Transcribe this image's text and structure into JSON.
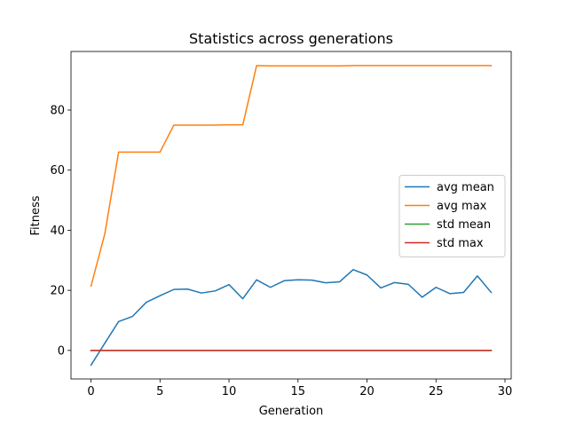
{
  "chart_data": {
    "type": "line",
    "title": "Statistics across generations",
    "xlabel": "Generation",
    "ylabel": "Fitness",
    "xlim": [
      -1.45,
      30.45
    ],
    "ylim": [
      -9.5,
      99.5
    ],
    "xticks": [
      0,
      5,
      10,
      15,
      20,
      25,
      30
    ],
    "yticks": [
      0,
      20,
      40,
      60,
      80
    ],
    "grid": false,
    "legend_position": "center-right",
    "x": [
      0,
      1,
      2,
      3,
      4,
      5,
      6,
      7,
      8,
      9,
      10,
      11,
      12,
      13,
      14,
      15,
      16,
      17,
      18,
      19,
      20,
      21,
      22,
      23,
      24,
      25,
      26,
      27,
      28,
      29
    ],
    "series": [
      {
        "name": "avg mean",
        "color": "#1f77b4",
        "values": [
          -4.9,
          2.4,
          9.6,
          11.3,
          16.0,
          18.2,
          20.3,
          20.4,
          19.1,
          19.8,
          21.9,
          17.2,
          23.5,
          21.0,
          23.2,
          23.5,
          23.4,
          22.5,
          22.8,
          26.9,
          25.1,
          20.8,
          22.6,
          22.0,
          17.7,
          21.0,
          18.9,
          19.3,
          24.8,
          19.3
        ]
      },
      {
        "name": "avg max",
        "color": "#ff7f0e",
        "values": [
          21.4,
          38.8,
          66.0,
          66.0,
          66.0,
          66.0,
          75.0,
          75.0,
          75.0,
          75.0,
          75.1,
          75.1,
          94.8,
          94.7,
          94.7,
          94.7,
          94.7,
          94.7,
          94.7,
          94.8,
          94.8,
          94.8,
          94.8,
          94.8,
          94.8,
          94.8,
          94.8,
          94.8,
          94.8,
          94.8
        ]
      },
      {
        "name": "std mean",
        "color": "#2ca02c",
        "values": [
          0,
          0,
          0,
          0,
          0,
          0,
          0,
          0,
          0,
          0,
          0,
          0,
          0,
          0,
          0,
          0,
          0,
          0,
          0,
          0,
          0,
          0,
          0,
          0,
          0,
          0,
          0,
          0,
          0,
          0
        ]
      },
      {
        "name": "std max",
        "color": "#d62728",
        "values": [
          0,
          0,
          0,
          0,
          0,
          0,
          0,
          0,
          0,
          0,
          0,
          0,
          0,
          0,
          0,
          0,
          0,
          0,
          0,
          0,
          0,
          0,
          0,
          0,
          0,
          0,
          0,
          0,
          0,
          0
        ]
      }
    ]
  }
}
